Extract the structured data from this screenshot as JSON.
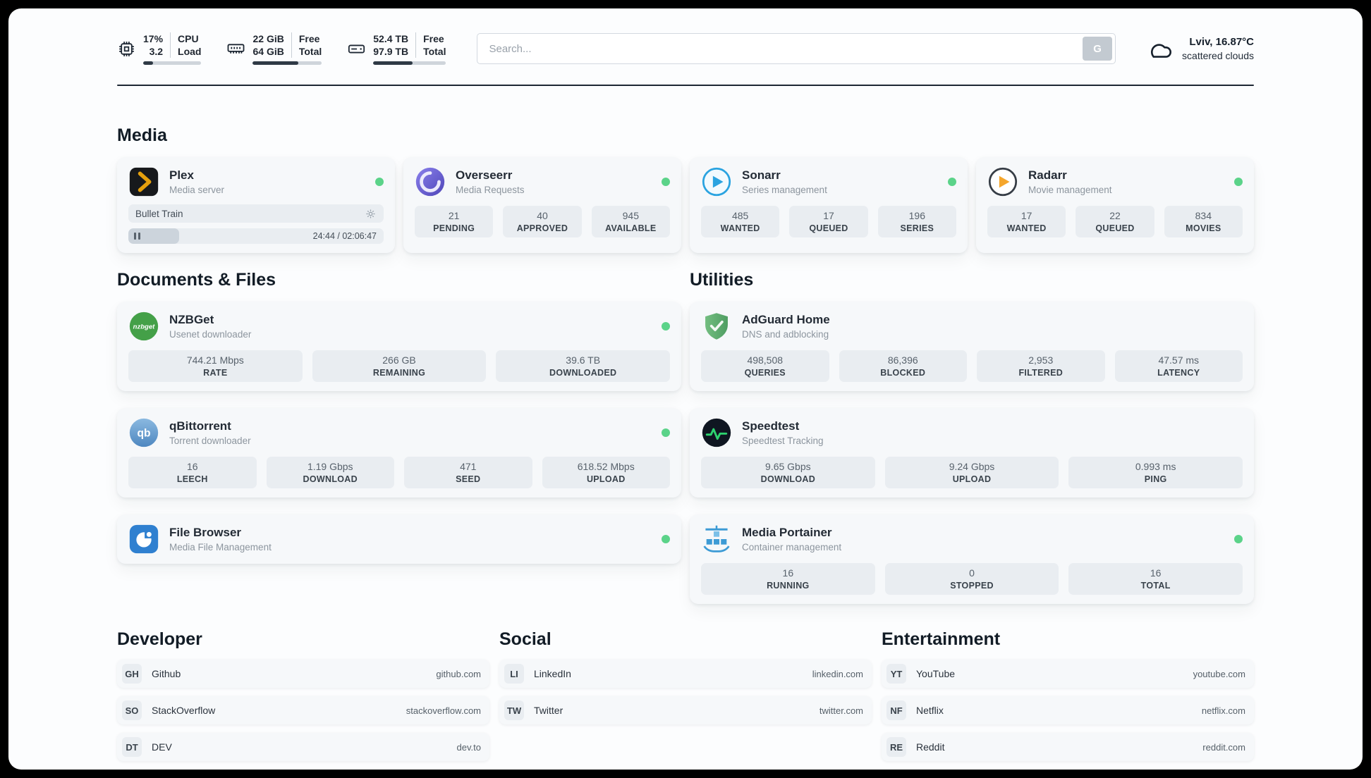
{
  "colors": {
    "status_online": "#5bd389",
    "accent_dark": "#1d2733",
    "plex_orange": "#e5a00d",
    "overseerr_purple": "#5f55cf",
    "sonarr_blue": "#2aa3e0",
    "radarr_amber": "#f5a62c",
    "nzbget_green": "#44a048",
    "qbittorrent_blue": "#4e87c0",
    "filebrowser_blue": "#2f80d0",
    "adguard_green": "#5fae6f",
    "speedtest_dark": "#0f1621",
    "portainer_blue": "#3d9bd5"
  },
  "topbar": {
    "cpu": {
      "icon": "cpu-icon",
      "values": [
        "17%",
        "3.2"
      ],
      "labels": [
        "CPU",
        "Load"
      ],
      "progress_percent": 17
    },
    "memory": {
      "icon": "memory-icon",
      "values": [
        "22 GiB",
        "64 GiB"
      ],
      "labels": [
        "Free",
        "Total"
      ],
      "progress_percent": 66
    },
    "storage": {
      "icon": "storage-icon",
      "values": [
        "52.4 TB",
        "97.9 TB"
      ],
      "labels": [
        "Free",
        "Total"
      ],
      "progress_percent": 54
    },
    "search": {
      "placeholder": "Search...",
      "engine_button": "G"
    },
    "weather": {
      "icon": "cloud-icon",
      "location": "Lviv, 16.87°C",
      "condition": "scattered clouds"
    }
  },
  "sections": {
    "media": {
      "heading": "Media",
      "plex": {
        "icon": "plex-icon",
        "title": "Plex",
        "subtitle": "Media server",
        "online": true,
        "now_playing": "Bullet Train",
        "time": "24:44 / 02:06:47",
        "progress_percent": 20
      },
      "overseerr": {
        "icon": "overseerr-icon",
        "title": "Overseerr",
        "subtitle": "Media Requests",
        "online": true,
        "stats": [
          {
            "value": "21",
            "label": "PENDING"
          },
          {
            "value": "40",
            "label": "APPROVED"
          },
          {
            "value": "945",
            "label": "AVAILABLE"
          }
        ]
      },
      "sonarr": {
        "icon": "sonarr-icon",
        "title": "Sonarr",
        "subtitle": "Series management",
        "online": true,
        "stats": [
          {
            "value": "485",
            "label": "WANTED"
          },
          {
            "value": "17",
            "label": "QUEUED"
          },
          {
            "value": "196",
            "label": "SERIES"
          }
        ]
      },
      "radarr": {
        "icon": "radarr-icon",
        "title": "Radarr",
        "subtitle": "Movie management",
        "online": true,
        "stats": [
          {
            "value": "17",
            "label": "WANTED"
          },
          {
            "value": "22",
            "label": "QUEUED"
          },
          {
            "value": "834",
            "label": "MOVIES"
          }
        ]
      }
    },
    "documents": {
      "heading": "Documents & Files",
      "nzbget": {
        "icon": "nzbget-icon",
        "icon_text": "nzbget",
        "title": "NZBGet",
        "subtitle": "Usenet downloader",
        "online": true,
        "stats": [
          {
            "value": "744.21 Mbps",
            "label": "RATE"
          },
          {
            "value": "266 GB",
            "label": "REMAINING"
          },
          {
            "value": "39.6 TB",
            "label": "DOWNLOADED"
          }
        ]
      },
      "qbittorrent": {
        "icon": "qbittorrent-icon",
        "icon_text": "qb",
        "title": "qBittorrent",
        "subtitle": "Torrent downloader",
        "online": true,
        "stats": [
          {
            "value": "16",
            "label": "LEECH"
          },
          {
            "value": "1.19 Gbps",
            "label": "DOWNLOAD"
          },
          {
            "value": "471",
            "label": "SEED"
          },
          {
            "value": "618.52 Mbps",
            "label": "UPLOAD"
          }
        ]
      },
      "filebrowser": {
        "icon": "filebrowser-icon",
        "title": "File Browser",
        "subtitle": "Media File Management",
        "online": true
      }
    },
    "utilities": {
      "heading": "Utilities",
      "adguard": {
        "icon": "adguard-icon",
        "title": "AdGuard Home",
        "subtitle": "DNS and adblocking",
        "stats": [
          {
            "value": "498,508",
            "label": "QUERIES"
          },
          {
            "value": "86,396",
            "label": "BLOCKED"
          },
          {
            "value": "2,953",
            "label": "FILTERED"
          },
          {
            "value": "47.57 ms",
            "label": "LATENCY"
          }
        ]
      },
      "speedtest": {
        "icon": "speedtest-icon",
        "title": "Speedtest",
        "subtitle": "Speedtest Tracking",
        "stats": [
          {
            "value": "9.65 Gbps",
            "label": "DOWNLOAD"
          },
          {
            "value": "9.24 Gbps",
            "label": "UPLOAD"
          },
          {
            "value": "0.993 ms",
            "label": "PING"
          }
        ]
      },
      "portainer": {
        "icon": "portainer-icon",
        "title": "Media Portainer",
        "subtitle": "Container management",
        "online": true,
        "stats": [
          {
            "value": "16",
            "label": "RUNNING"
          },
          {
            "value": "0",
            "label": "STOPPED"
          },
          {
            "value": "16",
            "label": "TOTAL"
          }
        ]
      }
    },
    "developer": {
      "heading": "Developer",
      "links": [
        {
          "abbr": "GH",
          "name": "Github",
          "url": "github.com"
        },
        {
          "abbr": "SO",
          "name": "StackOverflow",
          "url": "stackoverflow.com"
        },
        {
          "abbr": "DT",
          "name": "DEV",
          "url": "dev.to"
        }
      ]
    },
    "social": {
      "heading": "Social",
      "links": [
        {
          "abbr": "LI",
          "name": "LinkedIn",
          "url": "linkedin.com"
        },
        {
          "abbr": "TW",
          "name": "Twitter",
          "url": "twitter.com"
        }
      ]
    },
    "entertainment": {
      "heading": "Entertainment",
      "links": [
        {
          "abbr": "YT",
          "name": "YouTube",
          "url": "youtube.com"
        },
        {
          "abbr": "NF",
          "name": "Netflix",
          "url": "netflix.com"
        },
        {
          "abbr": "RE",
          "name": "Reddit",
          "url": "reddit.com"
        }
      ]
    }
  }
}
